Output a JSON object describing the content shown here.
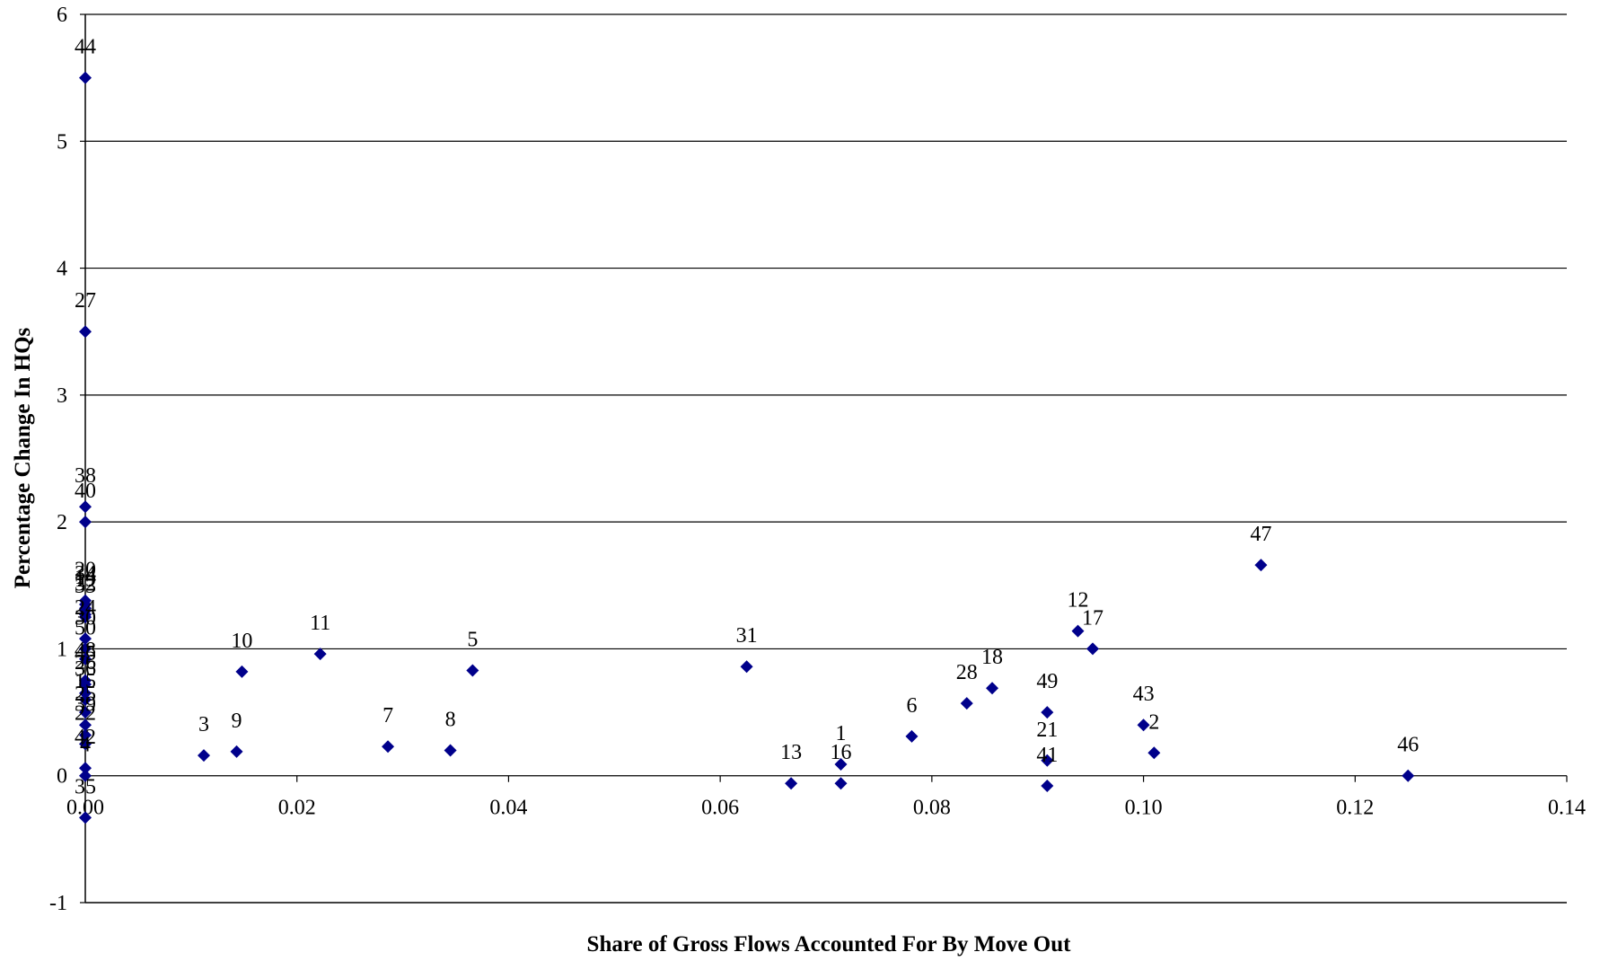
{
  "chart_data": {
    "type": "scatter",
    "title": "",
    "xlabel": "Share of Gross Flows Accounted For By Move Out",
    "ylabel": "Percentage Change In HQs",
    "xlim": [
      0,
      0.14
    ],
    "ylim": [
      -1,
      6
    ],
    "xticks": [
      "0.00",
      "0.02",
      "0.04",
      "0.06",
      "0.08",
      "0.10",
      "0.12",
      "0.14"
    ],
    "yticks": [
      "-1",
      "0",
      "1",
      "2",
      "3",
      "4",
      "5",
      "6"
    ],
    "grid": "horizontal major gridlines",
    "legend": "none",
    "marker": "diamond",
    "marker_color": "#00008B",
    "points": [
      {
        "label": "44",
        "x": 0.0,
        "y": 5.5
      },
      {
        "label": "27",
        "x": 0.0,
        "y": 3.5
      },
      {
        "label": "38",
        "x": 0.0,
        "y": 2.12
      },
      {
        "label": "40",
        "x": 0.0,
        "y": 2.0
      },
      {
        "label": "20",
        "x": 0.0,
        "y": 1.38
      },
      {
        "label": "34",
        "x": 0.0,
        "y": 1.35
      },
      {
        "label": "14",
        "x": 0.0,
        "y": 1.32
      },
      {
        "label": "19",
        "x": 0.0,
        "y": 1.3
      },
      {
        "label": "32",
        "x": 0.0,
        "y": 1.27
      },
      {
        "label": "33",
        "x": 0.0,
        "y": 1.25
      },
      {
        "label": "24",
        "x": 0.0,
        "y": 1.08
      },
      {
        "label": "30",
        "x": 0.0,
        "y": 1.0
      },
      {
        "label": "50",
        "x": 0.0,
        "y": 0.92
      },
      {
        "label": "48",
        "x": 0.0,
        "y": 0.75
      },
      {
        "label": "45",
        "x": 0.0,
        "y": 0.72
      },
      {
        "label": "26",
        "x": 0.0,
        "y": 0.65
      },
      {
        "label": "36",
        "x": 0.0,
        "y": 0.6
      },
      {
        "label": "15",
        "x": 0.0,
        "y": 0.5
      },
      {
        "label": "25",
        "x": 0.0,
        "y": 0.4
      },
      {
        "label": "39",
        "x": 0.0,
        "y": 0.32
      },
      {
        "label": "22",
        "x": 0.0,
        "y": 0.25
      },
      {
        "label": "42",
        "x": 0.0,
        "y": 0.06
      },
      {
        "label": "4",
        "x": 0.0,
        "y": 0.0
      },
      {
        "label": "35",
        "x": 0.0,
        "y": -0.33
      },
      {
        "label": "3",
        "x": 0.0112,
        "y": 0.16
      },
      {
        "label": "9",
        "x": 0.0143,
        "y": 0.19
      },
      {
        "label": "10",
        "x": 0.0148,
        "y": 0.82
      },
      {
        "label": "11",
        "x": 0.0222,
        "y": 0.96
      },
      {
        "label": "7",
        "x": 0.0286,
        "y": 0.23
      },
      {
        "label": "8",
        "x": 0.0345,
        "y": 0.2
      },
      {
        "label": "5",
        "x": 0.0366,
        "y": 0.83
      },
      {
        "label": "31",
        "x": 0.0625,
        "y": 0.86
      },
      {
        "label": "13",
        "x": 0.0667,
        "y": -0.06
      },
      {
        "label": "1",
        "x": 0.0714,
        "y": 0.09
      },
      {
        "label": "16",
        "x": 0.0714,
        "y": -0.06
      },
      {
        "label": "6",
        "x": 0.0781,
        "y": 0.31
      },
      {
        "label": "28",
        "x": 0.0833,
        "y": 0.57
      },
      {
        "label": "18",
        "x": 0.0857,
        "y": 0.69
      },
      {
        "label": "49",
        "x": 0.0909,
        "y": 0.5
      },
      {
        "label": "21",
        "x": 0.0909,
        "y": 0.12
      },
      {
        "label": "41",
        "x": 0.0909,
        "y": -0.08
      },
      {
        "label": "12",
        "x": 0.0938,
        "y": 1.14
      },
      {
        "label": "17",
        "x": 0.0952,
        "y": 1.0
      },
      {
        "label": "43",
        "x": 0.1,
        "y": 0.4
      },
      {
        "label": "2",
        "x": 0.101,
        "y": 0.18
      },
      {
        "label": "47",
        "x": 0.1111,
        "y": 1.66
      },
      {
        "label": "46",
        "x": 0.125,
        "y": 0.0
      }
    ]
  }
}
